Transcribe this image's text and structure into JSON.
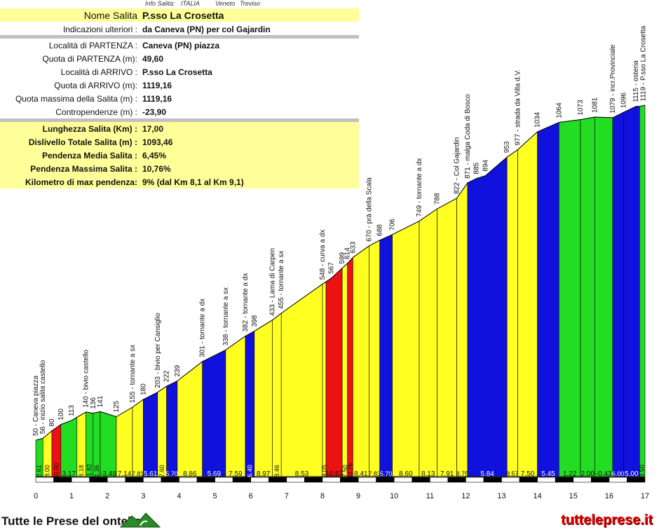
{
  "info_header": {
    "label": "Info Salita:",
    "country": "ITALIA",
    "region": "Veneto",
    "province": "Treviso"
  },
  "info_rows": [
    {
      "key": "Nome Salita",
      "value": "P.sso La Crosetta",
      "style": "title"
    },
    {
      "key": "Indicazioni ulteriori :",
      "value": "da Caneva (PN) per col Gajardin",
      "style": "plain"
    },
    {
      "key": "Località di PARTENZA :",
      "value": "Caneva (PN) piazza",
      "style": "plain"
    },
    {
      "key": "Quota di PARTENZA (m):",
      "value": "49,60",
      "style": "plain"
    },
    {
      "key": "Località di ARRIVO :",
      "value": "P.sso La Crosetta",
      "style": "plain"
    },
    {
      "key": "Quota di ARRIVO (m):",
      "value": "1119,16",
      "style": "plain"
    },
    {
      "key": "Quota massima della Salita (m) :",
      "value": "1119,16",
      "style": "plain"
    },
    {
      "key": "Contropendenze (m) :",
      "value": "-23,90",
      "style": "plain"
    },
    {
      "key": "Lunghezza Salita (Km) :",
      "value": "17,00",
      "style": "stat"
    },
    {
      "key": "Dislivello Totale Salita (m) :",
      "value": "1093,46",
      "style": "stat"
    },
    {
      "key": "Pendenza Media Salita :",
      "value": "6,45%",
      "style": "stat"
    },
    {
      "key": "Pendenza Massima Salita :",
      "value": "10,76%",
      "style": "stat"
    },
    {
      "key": "Kilometro di max pendenza:",
      "value": "9%        (dal Km 8,1 al Km 9,1)",
      "style": "stat"
    }
  ],
  "colors": {
    "green": "#22dd22",
    "yellow": "#ffff22",
    "blue": "#1111dd",
    "red": "#ee1111",
    "panel": "#ffff99"
  },
  "chart_data": {
    "type": "area",
    "xlabel": "",
    "ylabel": "",
    "xlim": [
      0,
      17
    ],
    "x_ticks": [
      "0",
      "1",
      "2",
      "3",
      "4",
      "5",
      "6",
      "7",
      "8",
      "9",
      "10",
      "11",
      "12",
      "13",
      "14",
      "15",
      "16",
      "17"
    ],
    "profile": [
      {
        "km": 0.0,
        "alt": 50
      },
      {
        "km": 0.2,
        "alt": 56
      },
      {
        "km": 0.45,
        "alt": 80
      },
      {
        "km": 0.7,
        "alt": 100
      },
      {
        "km": 1.0,
        "alt": 113
      },
      {
        "km": 1.4,
        "alt": 140
      },
      {
        "km": 1.6,
        "alt": 136
      },
      {
        "km": 1.8,
        "alt": 141
      },
      {
        "km": 2.25,
        "alt": 125
      },
      {
        "km": 2.7,
        "alt": 155
      },
      {
        "km": 3.0,
        "alt": 180
      },
      {
        "km": 3.4,
        "alt": 203
      },
      {
        "km": 3.65,
        "alt": 222
      },
      {
        "km": 3.95,
        "alt": 239
      },
      {
        "km": 4.65,
        "alt": 301
      },
      {
        "km": 5.3,
        "alt": 338
      },
      {
        "km": 5.85,
        "alt": 382
      },
      {
        "km": 6.1,
        "alt": 398
      },
      {
        "km": 6.6,
        "alt": 433
      },
      {
        "km": 6.85,
        "alt": 455
      },
      {
        "km": 8.0,
        "alt": 548
      },
      {
        "km": 8.25,
        "alt": 567
      },
      {
        "km": 8.55,
        "alt": 599
      },
      {
        "km": 8.7,
        "alt": 614
      },
      {
        "km": 8.85,
        "alt": 633
      },
      {
        "km": 9.3,
        "alt": 670
      },
      {
        "km": 9.6,
        "alt": 688
      },
      {
        "km": 9.95,
        "alt": 706
      },
      {
        "km": 10.7,
        "alt": 749
      },
      {
        "km": 11.2,
        "alt": 788
      },
      {
        "km": 11.75,
        "alt": 822
      },
      {
        "km": 12.05,
        "alt": 871
      },
      {
        "km": 12.3,
        "alt": 885
      },
      {
        "km": 12.55,
        "alt": 894
      },
      {
        "km": 13.15,
        "alt": 953
      },
      {
        "km": 13.45,
        "alt": 977
      },
      {
        "km": 14.0,
        "alt": 1034
      },
      {
        "km": 14.6,
        "alt": 1064
      },
      {
        "km": 15.2,
        "alt": 1073
      },
      {
        "km": 15.6,
        "alt": 1081
      },
      {
        "km": 16.1,
        "alt": 1079
      },
      {
        "km": 16.4,
        "alt": 1096
      },
      {
        "km": 16.75,
        "alt": 1115
      },
      {
        "km": 16.85,
        "alt": 1115
      },
      {
        "km": 17.0,
        "alt": 1119
      }
    ],
    "segments": [
      {
        "from": 0.0,
        "to": 0.2,
        "gradient": "2.61",
        "color": "green"
      },
      {
        "from": 0.2,
        "to": 0.45,
        "gradient": "8.00",
        "color": "yellow"
      },
      {
        "from": 0.45,
        "to": 0.7,
        "gradient": "10.00",
        "color": "red"
      },
      {
        "from": 0.7,
        "to": 1.15,
        "gradient": "3.17",
        "color": "green"
      },
      {
        "from": 1.15,
        "to": 1.4,
        "gradient": "8.18",
        "color": "yellow"
      },
      {
        "from": 1.4,
        "to": 1.6,
        "gradient": "-1.82",
        "color": "green"
      },
      {
        "from": 1.6,
        "to": 1.8,
        "gradient": "1.36",
        "color": "green"
      },
      {
        "from": 1.8,
        "to": 2.25,
        "gradient": "-3.48",
        "color": "green"
      },
      {
        "from": 2.25,
        "to": 2.7,
        "gradient": "7.14",
        "color": "yellow"
      },
      {
        "from": 2.7,
        "to": 3.0,
        "gradient": "7.81",
        "color": "yellow"
      },
      {
        "from": 3.0,
        "to": 3.4,
        "gradient": "5.61",
        "color": "blue"
      },
      {
        "from": 3.4,
        "to": 3.65,
        "gradient": "7.60",
        "color": "yellow"
      },
      {
        "from": 3.65,
        "to": 3.95,
        "gradient": "5.70",
        "color": "blue"
      },
      {
        "from": 3.95,
        "to": 4.65,
        "gradient": "8.86",
        "color": "yellow"
      },
      {
        "from": 4.65,
        "to": 5.3,
        "gradient": "5.69",
        "color": "blue"
      },
      {
        "from": 5.3,
        "to": 5.85,
        "gradient": "7.59",
        "color": "yellow"
      },
      {
        "from": 5.85,
        "to": 6.1,
        "gradient": "6.40",
        "color": "blue"
      },
      {
        "from": 6.1,
        "to": 6.6,
        "gradient": "8.97",
        "color": "yellow"
      },
      {
        "from": 6.6,
        "to": 6.85,
        "gradient": "8.46",
        "color": "yellow"
      },
      {
        "from": 6.85,
        "to": 8.0,
        "gradient": "8.53",
        "color": "yellow"
      },
      {
        "from": 8.0,
        "to": 8.1,
        "gradient": "9.05",
        "color": "yellow"
      },
      {
        "from": 8.1,
        "to": 8.55,
        "gradient": "10.67",
        "color": "red"
      },
      {
        "from": 8.55,
        "to": 8.7,
        "gradient": "7.50",
        "color": "yellow"
      },
      {
        "from": 8.7,
        "to": 8.85,
        "gradient": "10.76",
        "color": "red"
      },
      {
        "from": 8.85,
        "to": 9.3,
        "gradient": "8.41",
        "color": "yellow"
      },
      {
        "from": 9.3,
        "to": 9.6,
        "gradient": "7.83",
        "color": "yellow"
      },
      {
        "from": 9.6,
        "to": 9.95,
        "gradient": "5.70",
        "color": "blue"
      },
      {
        "from": 9.95,
        "to": 10.7,
        "gradient": "8.60",
        "color": "yellow"
      },
      {
        "from": 10.7,
        "to": 11.2,
        "gradient": "8.13",
        "color": "yellow"
      },
      {
        "from": 11.2,
        "to": 11.75,
        "gradient": "7.91",
        "color": "yellow"
      },
      {
        "from": 11.75,
        "to": 12.05,
        "gradient": "8.75",
        "color": "yellow"
      },
      {
        "from": 12.05,
        "to": 13.15,
        "gradient": "5.84",
        "color": "blue"
      },
      {
        "from": 13.15,
        "to": 13.45,
        "gradient": "8.57",
        "color": "yellow"
      },
      {
        "from": 13.45,
        "to": 14.0,
        "gradient": "7.50",
        "color": "yellow"
      },
      {
        "from": 14.0,
        "to": 14.6,
        "gradient": "5.45",
        "color": "blue"
      },
      {
        "from": 14.6,
        "to": 15.2,
        "gradient": "1.22",
        "color": "green"
      },
      {
        "from": 15.2,
        "to": 15.6,
        "gradient": "2.00",
        "color": "green"
      },
      {
        "from": 15.6,
        "to": 16.1,
        "gradient": "-0.43",
        "color": "green"
      },
      {
        "from": 16.1,
        "to": 16.4,
        "gradient": "6.00",
        "color": "blue"
      },
      {
        "from": 16.4,
        "to": 16.85,
        "gradient": "5.00",
        "color": "blue"
      },
      {
        "from": 16.85,
        "to": 17.0,
        "gradient": "3.50",
        "color": "green"
      }
    ],
    "annotations": [
      {
        "km": 0.0,
        "text": "50 - Caneva piazza"
      },
      {
        "km": 0.2,
        "text": "56 - inizio salita castello"
      },
      {
        "km": 0.45,
        "text": "80"
      },
      {
        "km": 0.7,
        "text": "100"
      },
      {
        "km": 1.0,
        "text": "113"
      },
      {
        "km": 1.4,
        "text": "140 - bivio castello"
      },
      {
        "km": 1.6,
        "text": "136"
      },
      {
        "km": 1.8,
        "text": "141"
      },
      {
        "km": 2.25,
        "text": "125"
      },
      {
        "km": 2.7,
        "text": "155 - tornante a sx"
      },
      {
        "km": 3.0,
        "text": "180"
      },
      {
        "km": 3.4,
        "text": "203 - bivio per Cansiglio"
      },
      {
        "km": 3.65,
        "text": "222"
      },
      {
        "km": 3.95,
        "text": "239"
      },
      {
        "km": 4.65,
        "text": "301 - tornante a dx"
      },
      {
        "km": 5.3,
        "text": "338 - tornante a sx"
      },
      {
        "km": 5.85,
        "text": "382 - tornante a dx"
      },
      {
        "km": 6.1,
        "text": "398"
      },
      {
        "km": 6.6,
        "text": "433 - Lama di Carpen"
      },
      {
        "km": 6.85,
        "text": "455 - tornante a sx"
      },
      {
        "km": 8.0,
        "text": "548 - curva a dx"
      },
      {
        "km": 8.25,
        "text": "567"
      },
      {
        "km": 8.55,
        "text": "599"
      },
      {
        "km": 8.7,
        "text": "614"
      },
      {
        "km": 8.85,
        "text": "633"
      },
      {
        "km": 9.3,
        "text": "670 - prà della Scala"
      },
      {
        "km": 9.6,
        "text": "688"
      },
      {
        "km": 9.95,
        "text": "706"
      },
      {
        "km": 10.7,
        "text": "749 - tornante a dx"
      },
      {
        "km": 11.2,
        "text": "788"
      },
      {
        "km": 11.75,
        "text": "822 - Col Gajardin"
      },
      {
        "km": 12.05,
        "text": "871 - malga Coda di Bosco"
      },
      {
        "km": 12.3,
        "text": "885"
      },
      {
        "km": 12.55,
        "text": "894"
      },
      {
        "km": 13.15,
        "text": "953"
      },
      {
        "km": 13.45,
        "text": "977 - strada da Villa d.V."
      },
      {
        "km": 14.0,
        "text": "1034"
      },
      {
        "km": 14.6,
        "text": "1064"
      },
      {
        "km": 15.2,
        "text": "1073"
      },
      {
        "km": 15.6,
        "text": "1081"
      },
      {
        "km": 16.1,
        "text": "1079 - incr.Provinciale"
      },
      {
        "km": 16.4,
        "text": "1096"
      },
      {
        "km": 16.75,
        "text": "1115 - osteria"
      },
      {
        "km": 16.95,
        "text": "1119 - P.sso La Crosetta"
      }
    ]
  },
  "footer": {
    "left": "Tutte le Prese del ontello",
    "right": "tutteleprese.it"
  }
}
